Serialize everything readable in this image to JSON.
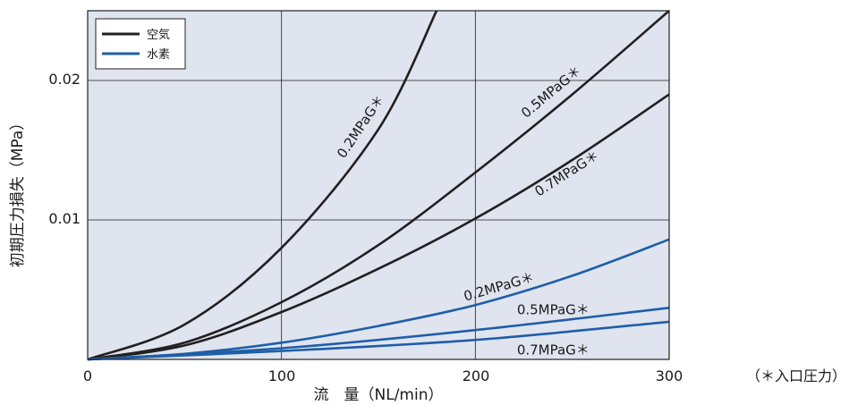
{
  "chart_data": {
    "type": "line",
    "xlabel": "流　量（NL/min）",
    "ylabel": "初期圧力損失（MPa）",
    "note": "（＊入口圧力）",
    "xlim": [
      0,
      300
    ],
    "ylim": [
      0,
      0.025
    ],
    "xticks": [
      "0",
      "100",
      "200",
      "300"
    ],
    "yticks": [
      "0.01",
      "0.02"
    ],
    "grid": true,
    "legend_position": "top-left",
    "legend": [
      {
        "label": "空気",
        "color": "#231f20"
      },
      {
        "label": "水素",
        "color": "#1f5ea8"
      }
    ],
    "series": [
      {
        "gas": "空気",
        "name": "0.2MPaG＊",
        "color": "#231f20",
        "x": [
          0,
          50,
          100,
          150,
          180
        ],
        "y": [
          0,
          0.0025,
          0.008,
          0.0165,
          0.025
        ]
      },
      {
        "gas": "空気",
        "name": "0.5MPaG＊",
        "color": "#231f20",
        "x": [
          0,
          50,
          100,
          150,
          200,
          250,
          300
        ],
        "y": [
          0,
          0.0012,
          0.0041,
          0.0082,
          0.0134,
          0.019,
          0.025
        ]
      },
      {
        "gas": "空気",
        "name": "0.7MPaG＊",
        "color": "#231f20",
        "x": [
          0,
          50,
          100,
          150,
          200,
          250,
          300
        ],
        "y": [
          0,
          0.001,
          0.0034,
          0.0065,
          0.0101,
          0.0143,
          0.019
        ]
      },
      {
        "gas": "水素",
        "name": "0.2MPaG＊",
        "color": "#1f5ea8",
        "x": [
          0,
          50,
          100,
          150,
          200,
          250,
          300
        ],
        "y": [
          0,
          0.0004,
          0.0012,
          0.0024,
          0.0039,
          0.006,
          0.0086
        ]
      },
      {
        "gas": "水素",
        "name": "0.5MPaG＊",
        "color": "#1f5ea8",
        "x": [
          0,
          100,
          200,
          300
        ],
        "y": [
          0,
          0.0008,
          0.0021,
          0.0037
        ]
      },
      {
        "gas": "水素",
        "name": "0.7MPaG＊",
        "color": "#1f5ea8",
        "x": [
          0,
          100,
          200,
          300
        ],
        "y": [
          0,
          0.0006,
          0.0014,
          0.0027
        ]
      }
    ]
  }
}
